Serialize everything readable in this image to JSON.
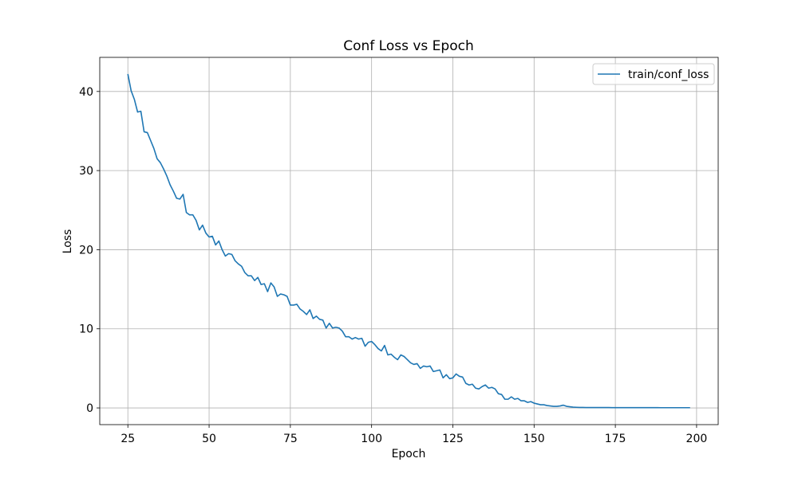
{
  "chart_data": {
    "type": "line",
    "title": "Conf Loss vs Epoch",
    "xlabel": "Epoch",
    "ylabel": "Loss",
    "grid": true,
    "legend": "upper right",
    "xlim": [
      16.35,
      206.65
    ],
    "ylim": [
      -2.11,
      44.31
    ],
    "xticks": [
      25,
      50,
      75,
      100,
      125,
      150,
      175,
      200
    ],
    "yticks": [
      0,
      10,
      20,
      30,
      40
    ],
    "series": [
      {
        "name": "train/conf_loss",
        "color": "#1f77b4",
        "x": [
          25,
          26,
          27,
          28,
          29,
          30,
          31,
          32,
          33,
          34,
          35,
          36,
          37,
          38,
          39,
          40,
          41,
          42,
          43,
          44,
          45,
          46,
          47,
          48,
          49,
          50,
          51,
          52,
          53,
          54,
          55,
          56,
          57,
          58,
          59,
          60,
          61,
          62,
          63,
          64,
          65,
          66,
          67,
          68,
          69,
          70,
          71,
          72,
          73,
          74,
          75,
          76,
          77,
          78,
          79,
          80,
          81,
          82,
          83,
          84,
          85,
          86,
          87,
          88,
          89,
          90,
          91,
          92,
          93,
          94,
          95,
          96,
          97,
          98,
          99,
          100,
          101,
          102,
          103,
          104,
          105,
          106,
          107,
          108,
          109,
          110,
          111,
          112,
          113,
          114,
          115,
          116,
          117,
          118,
          119,
          120,
          121,
          122,
          123,
          124,
          125,
          126,
          127,
          128,
          129,
          130,
          131,
          132,
          133,
          134,
          135,
          136,
          137,
          138,
          139,
          140,
          141,
          142,
          143,
          144,
          145,
          146,
          147,
          148,
          149,
          150,
          151,
          152,
          153,
          154,
          155,
          156,
          157,
          158,
          159,
          160,
          161,
          162,
          163,
          164,
          165,
          166,
          167,
          168,
          169,
          170,
          171,
          172,
          173,
          174,
          175,
          176,
          177,
          178,
          179,
          180,
          181,
          182,
          183,
          184,
          185,
          186,
          187,
          188,
          189,
          190,
          191,
          192,
          193,
          194,
          195,
          196,
          197,
          198
        ],
        "values": [
          42.2,
          40.1,
          39.0,
          37.4,
          37.5,
          34.9,
          34.8,
          33.8,
          32.8,
          31.5,
          31.0,
          30.2,
          29.3,
          28.2,
          27.4,
          26.5,
          26.4,
          27.0,
          24.7,
          24.4,
          24.4,
          23.7,
          22.5,
          23.1,
          22.1,
          21.6,
          21.7,
          20.6,
          21.1,
          20.0,
          19.2,
          19.5,
          19.4,
          18.6,
          18.2,
          17.9,
          17.1,
          16.7,
          16.7,
          16.1,
          16.5,
          15.6,
          15.7,
          14.7,
          15.8,
          15.3,
          14.1,
          14.4,
          14.3,
          14.1,
          13.0,
          13.0,
          13.1,
          12.5,
          12.2,
          11.8,
          12.4,
          11.3,
          11.6,
          11.2,
          11.1,
          10.1,
          10.7,
          10.1,
          10.2,
          10.1,
          9.7,
          9.0,
          9.0,
          8.7,
          8.9,
          8.7,
          8.8,
          7.8,
          8.3,
          8.4,
          8.0,
          7.5,
          7.2,
          7.9,
          6.7,
          6.8,
          6.4,
          6.1,
          6.7,
          6.5,
          6.1,
          5.7,
          5.5,
          5.6,
          5.0,
          5.3,
          5.2,
          5.3,
          4.6,
          4.7,
          4.8,
          3.8,
          4.2,
          3.7,
          3.8,
          4.3,
          4.0,
          3.9,
          3.1,
          2.9,
          3.0,
          2.5,
          2.4,
          2.7,
          2.9,
          2.5,
          2.6,
          2.4,
          1.8,
          1.7,
          1.1,
          1.1,
          1.4,
          1.1,
          1.2,
          0.9,
          0.9,
          0.7,
          0.8,
          0.6,
          0.5,
          0.4,
          0.4,
          0.3,
          0.25,
          0.2,
          0.2,
          0.25,
          0.35,
          0.2,
          0.15,
          0.1,
          0.08,
          0.06,
          0.06,
          0.05,
          0.05,
          0.05,
          0.05,
          0.05,
          0.05,
          0.05,
          0.05,
          0.04,
          0.04,
          0.04,
          0.04,
          0.04,
          0.04,
          0.04,
          0.04,
          0.04,
          0.04,
          0.04,
          0.04,
          0.04,
          0.04,
          0.04,
          0.03,
          0.03,
          0.03,
          0.03,
          0.03,
          0.03,
          0.03,
          0.03,
          0.03,
          0.03
        ]
      }
    ]
  }
}
